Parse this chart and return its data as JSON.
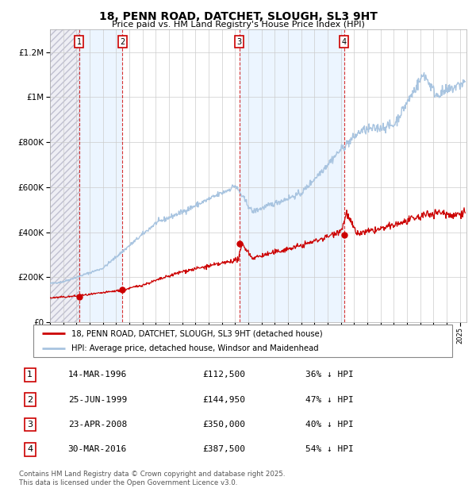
{
  "title": "18, PENN ROAD, DATCHET, SLOUGH, SL3 9HT",
  "subtitle": "Price paid vs. HM Land Registry's House Price Index (HPI)",
  "legend_line1": "18, PENN ROAD, DATCHET, SLOUGH, SL3 9HT (detached house)",
  "legend_line2": "HPI: Average price, detached house, Windsor and Maidenhead",
  "footnote1": "Contains HM Land Registry data © Crown copyright and database right 2025.",
  "footnote2": "This data is licensed under the Open Government Licence v3.0.",
  "transactions": [
    {
      "num": 1,
      "date": "14-MAR-1996",
      "price": 112500,
      "pct": "36%",
      "year_float": 1996.2
    },
    {
      "num": 2,
      "date": "25-JUN-1999",
      "price": 144950,
      "pct": "47%",
      "year_float": 1999.48
    },
    {
      "num": 3,
      "date": "23-APR-2008",
      "price": 350000,
      "pct": "40%",
      "year_float": 2008.31
    },
    {
      "num": 4,
      "date": "30-MAR-2016",
      "price": 387500,
      "pct": "54%",
      "year_float": 2016.25
    }
  ],
  "hpi_color": "#a8c4e0",
  "price_color": "#cc0000",
  "shade_color": "#ddeeff",
  "ylim": [
    0,
    1300000
  ],
  "xlim_start": 1994.0,
  "xlim_end": 2025.5
}
